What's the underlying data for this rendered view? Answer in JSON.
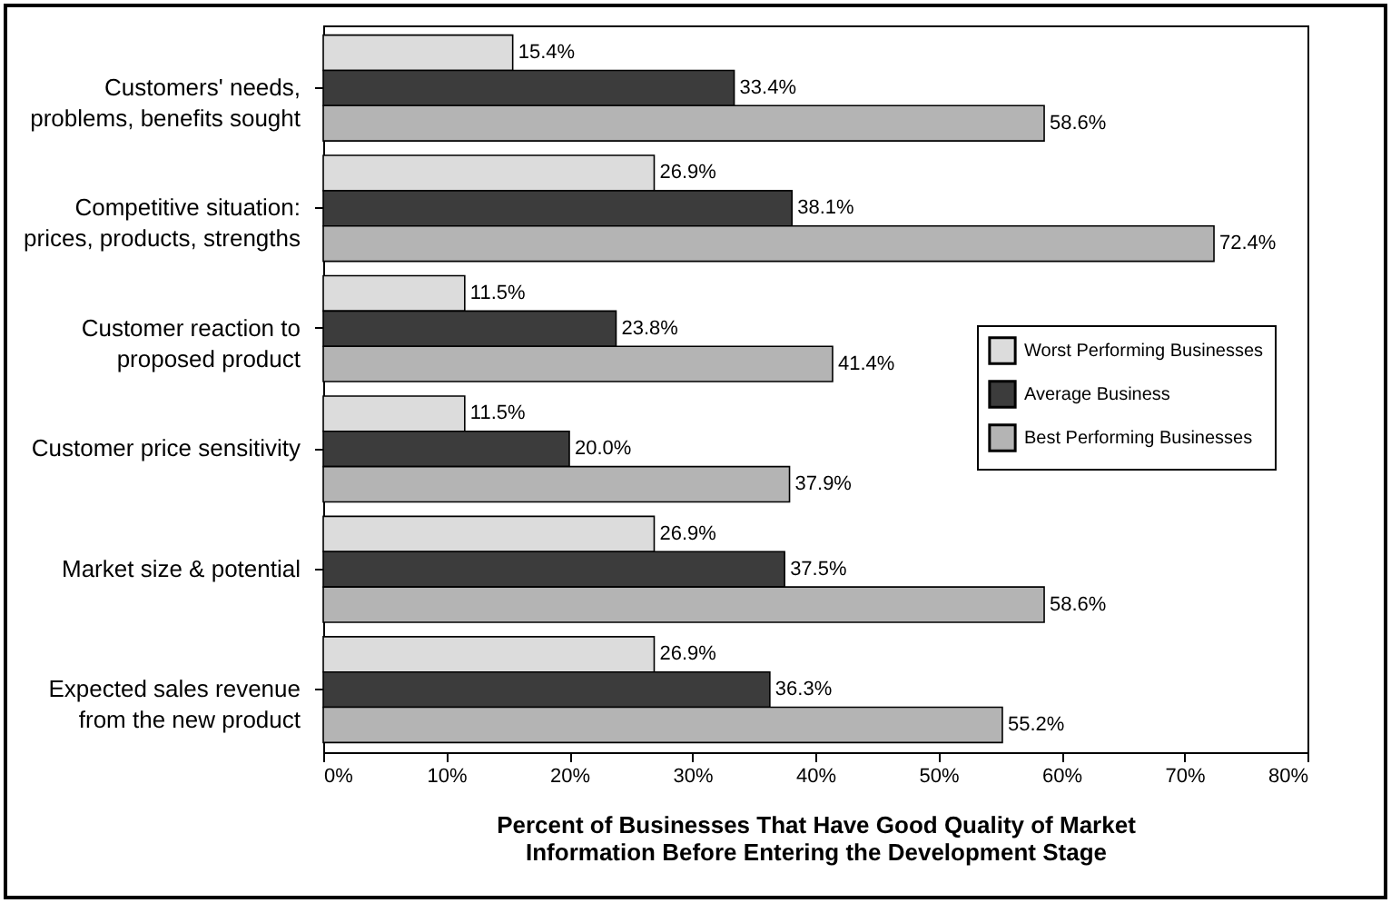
{
  "chart_data": {
    "type": "bar",
    "orientation": "horizontal",
    "xlabel": "Percent of Businesses That Have Good Quality of Market Information Before Entering the Development Stage",
    "categories": [
      "Customers' needs, problems, benefits sought",
      "Competitive situation: prices, products, strengths",
      "Customer reaction to proposed product",
      "Customer price sensitivity",
      "Market size & potential",
      "Expected sales revenue from the new product"
    ],
    "series": [
      {
        "name": "Worst Performing Businesses",
        "color": "#dcdcdc",
        "values": [
          15.4,
          26.9,
          11.5,
          11.5,
          26.9,
          26.9
        ],
        "value_labels": [
          "15.4%",
          "26.9%",
          "11.5%",
          "11.5%",
          "26.9%",
          "26.9%"
        ]
      },
      {
        "name": "Average Business",
        "color": "#3c3c3c",
        "values": [
          33.4,
          38.1,
          23.8,
          20.0,
          37.5,
          36.3
        ],
        "value_labels": [
          "33.4%",
          "38.1%",
          "23.8%",
          "20.0%",
          "37.5%",
          "36.3%"
        ]
      },
      {
        "name": "Best Performing Businesses",
        "color": "#b4b4b4",
        "values": [
          58.6,
          72.4,
          41.4,
          37.9,
          58.6,
          55.2
        ],
        "value_labels": [
          "58.6%",
          "72.4%",
          "41.4%",
          "37.9%",
          "58.6%",
          "55.2%"
        ]
      }
    ],
    "xlim": [
      0,
      80
    ],
    "xticks": [
      {
        "value": 0,
        "label": "0%"
      },
      {
        "value": 10,
        "label": "10%"
      },
      {
        "value": 20,
        "label": "20%"
      },
      {
        "value": 30,
        "label": "30%"
      },
      {
        "value": 40,
        "label": "40%"
      },
      {
        "value": 50,
        "label": "50%"
      },
      {
        "value": 60,
        "label": "60%"
      },
      {
        "value": 70,
        "label": "70%"
      },
      {
        "value": 80,
        "label": "80%"
      }
    ],
    "grid": false,
    "legend": "right"
  }
}
